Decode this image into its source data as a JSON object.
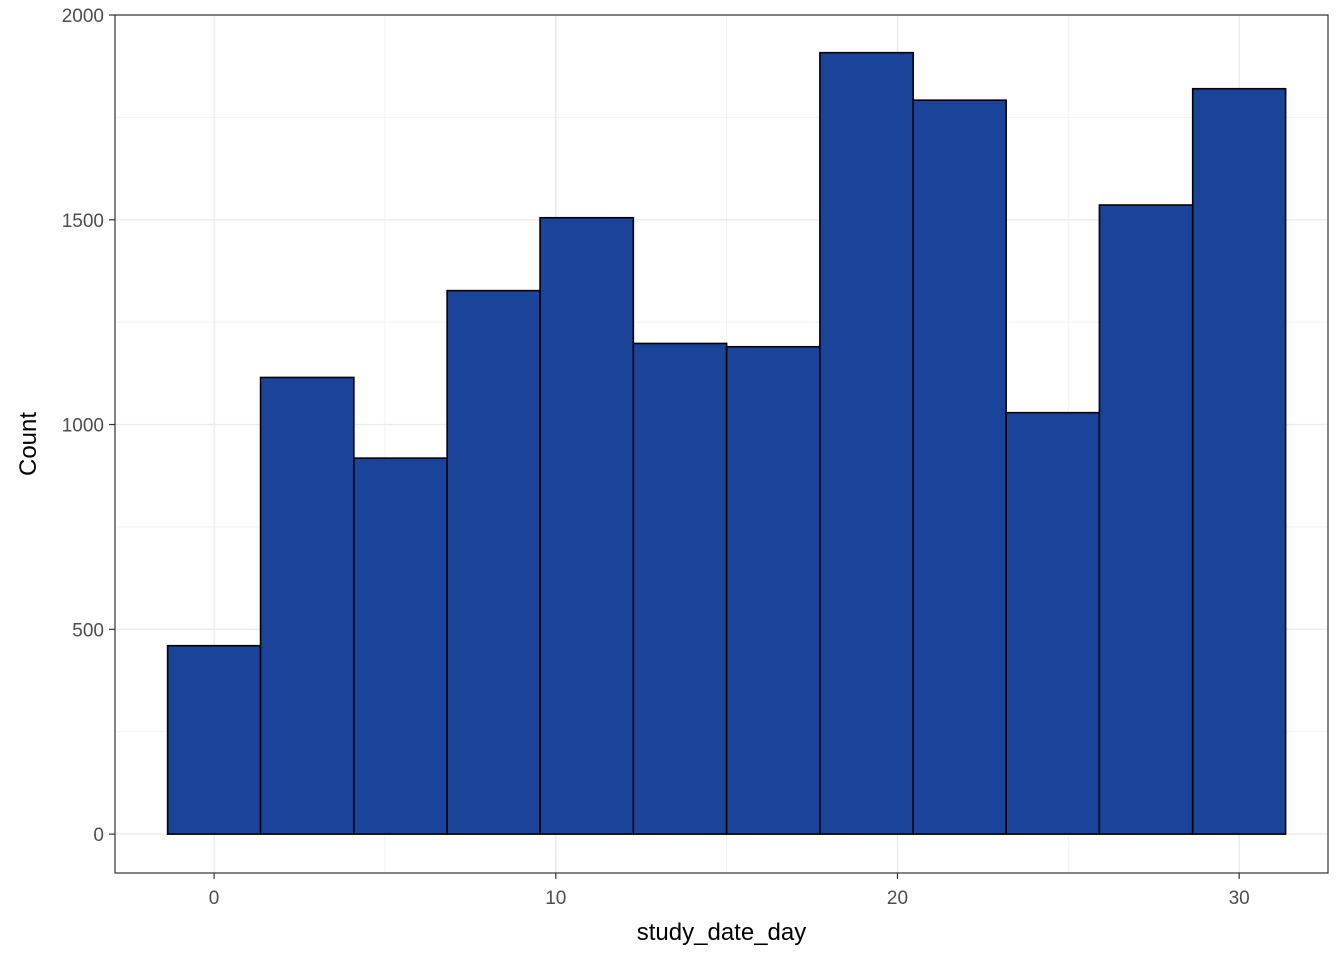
{
  "chart_data": {
    "type": "bar",
    "title": "",
    "xlabel": "study_date_day",
    "ylabel": "Count",
    "xlim": [
      -2.9,
      32.6
    ],
    "ylim": [
      -95,
      2000
    ],
    "x_ticks": [
      0,
      10,
      20,
      30
    ],
    "y_ticks": [
      0,
      500,
      1000,
      1500,
      2000
    ],
    "grid": true,
    "fill_color": "#1A4499",
    "outline_color": "#000000",
    "bins": [
      {
        "x0": -1.36,
        "x1": 1.36,
        "count": 460
      },
      {
        "x0": 1.36,
        "x1": 4.09,
        "count": 1115
      },
      {
        "x0": 4.09,
        "x1": 6.82,
        "count": 918
      },
      {
        "x0": 6.82,
        "x1": 9.54,
        "count": 1327
      },
      {
        "x0": 9.54,
        "x1": 12.27,
        "count": 1505
      },
      {
        "x0": 12.27,
        "x1": 15.0,
        "count": 1198
      },
      {
        "x0": 15.0,
        "x1": 17.73,
        "count": 1190
      },
      {
        "x0": 17.73,
        "x1": 20.46,
        "count": 1908
      },
      {
        "x0": 20.46,
        "x1": 23.18,
        "count": 1792
      },
      {
        "x0": 23.18,
        "x1": 25.91,
        "count": 1029
      },
      {
        "x0": 25.91,
        "x1": 28.64,
        "count": 1536
      },
      {
        "x0": 28.64,
        "x1": 31.36,
        "count": 1820
      }
    ]
  }
}
